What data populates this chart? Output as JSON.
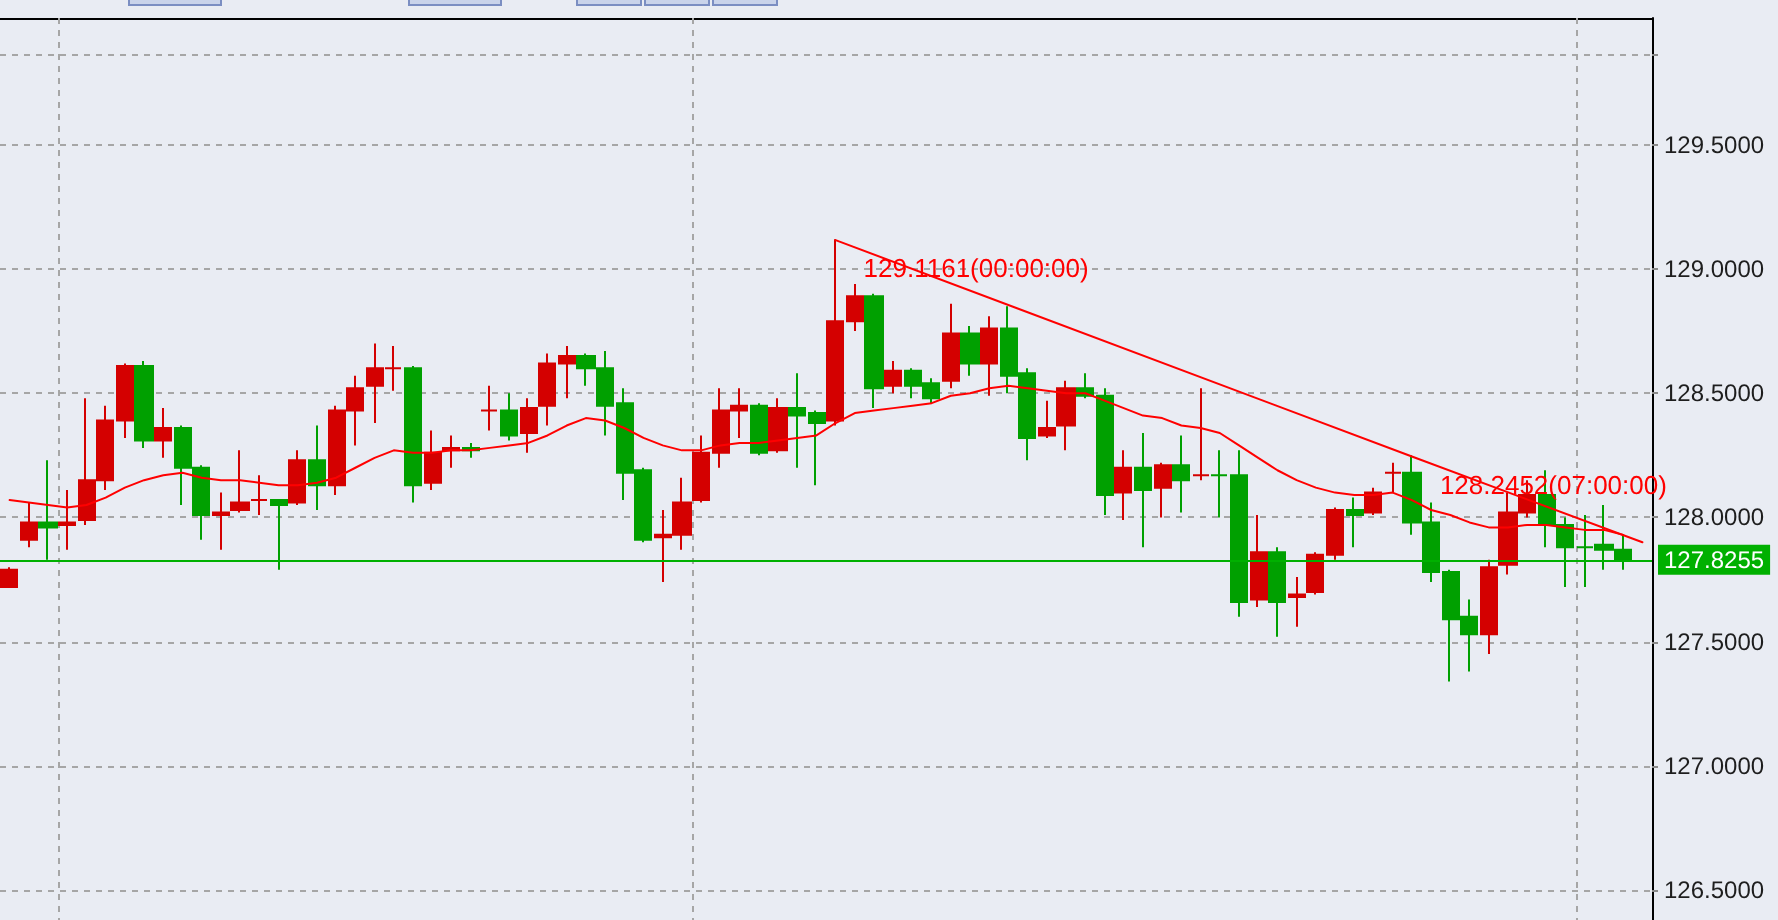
{
  "chart_data": {
    "type": "candlestick",
    "categories": [
      null,
      null,
      null,
      null,
      null,
      null,
      null,
      null,
      null,
      null,
      null,
      null,
      null,
      null,
      null,
      null,
      null,
      null,
      null,
      null,
      null,
      null,
      null,
      null,
      null,
      null,
      null,
      null,
      null,
      null,
      null,
      null,
      null,
      null,
      null,
      null,
      null,
      null,
      null,
      null,
      null,
      null,
      null,
      null,
      null,
      null,
      null,
      null,
      null,
      null,
      null,
      null,
      null,
      null,
      null,
      null,
      null,
      null,
      null,
      null,
      null,
      null,
      null,
      null,
      null,
      null,
      null,
      null,
      null,
      null,
      null,
      null,
      null,
      null,
      null,
      null,
      null,
      null,
      null,
      null,
      null,
      null,
      null,
      null,
      null,
      null
    ],
    "ohlc": [
      [
        127.72,
        127.8,
        127.72,
        127.79
      ],
      [
        127.91,
        128.06,
        127.88,
        127.98
      ],
      [
        127.98,
        128.23,
        127.83,
        127.96
      ],
      [
        127.97,
        128.11,
        127.87,
        127.98
      ],
      [
        127.99,
        128.48,
        127.97,
        128.15
      ],
      [
        128.15,
        128.45,
        128.11,
        128.39
      ],
      [
        128.39,
        128.62,
        128.32,
        128.61
      ],
      [
        128.61,
        128.63,
        128.28,
        128.31
      ],
      [
        128.31,
        128.44,
        128.24,
        128.36
      ],
      [
        128.36,
        128.37,
        128.05,
        128.2
      ],
      [
        128.2,
        128.21,
        127.91,
        128.01
      ],
      [
        128.01,
        128.1,
        127.87,
        128.02
      ],
      [
        128.03,
        128.27,
        128.02,
        128.06
      ],
      [
        128.07,
        128.17,
        128.01,
        128.07
      ],
      [
        128.07,
        128.07,
        127.79,
        128.05
      ],
      [
        128.06,
        128.27,
        128.05,
        128.23
      ],
      [
        128.23,
        128.37,
        128.03,
        128.13
      ],
      [
        128.13,
        128.45,
        128.09,
        128.43
      ],
      [
        128.43,
        128.57,
        128.29,
        128.52
      ],
      [
        128.53,
        128.7,
        128.38,
        128.6
      ],
      [
        128.6,
        128.69,
        128.51,
        128.6
      ],
      [
        128.6,
        128.61,
        128.06,
        128.13
      ],
      [
        128.14,
        128.35,
        128.11,
        128.26
      ],
      [
        128.27,
        128.33,
        128.2,
        128.28
      ],
      [
        128.28,
        128.3,
        128.24,
        128.27
      ],
      [
        128.43,
        128.53,
        128.35,
        128.43
      ],
      [
        128.43,
        128.5,
        128.31,
        128.33
      ],
      [
        128.34,
        128.48,
        128.26,
        128.44
      ],
      [
        128.45,
        128.66,
        128.37,
        128.62
      ],
      [
        128.62,
        128.69,
        128.48,
        128.65
      ],
      [
        128.65,
        128.66,
        128.53,
        128.6
      ],
      [
        128.6,
        128.67,
        128.33,
        128.45
      ],
      [
        128.46,
        128.52,
        128.07,
        128.18
      ],
      [
        128.19,
        128.2,
        127.9,
        127.91
      ],
      [
        127.92,
        128.03,
        127.74,
        127.93
      ],
      [
        127.93,
        128.16,
        127.87,
        128.06
      ],
      [
        128.07,
        128.33,
        128.06,
        128.26
      ],
      [
        128.26,
        128.52,
        128.2,
        128.43
      ],
      [
        128.43,
        128.52,
        128.32,
        128.45
      ],
      [
        128.45,
        128.46,
        128.25,
        128.26
      ],
      [
        128.27,
        128.48,
        128.26,
        128.44
      ],
      [
        128.44,
        128.58,
        128.2,
        128.41
      ],
      [
        128.42,
        128.43,
        128.13,
        128.38
      ],
      [
        128.39,
        129.12,
        128.37,
        128.79
      ],
      [
        128.79,
        128.94,
        128.75,
        128.89
      ],
      [
        128.89,
        128.9,
        128.44,
        128.52
      ],
      [
        128.53,
        128.63,
        128.5,
        128.59
      ],
      [
        128.59,
        128.6,
        128.48,
        128.53
      ],
      [
        128.54,
        128.56,
        128.46,
        128.48
      ],
      [
        128.55,
        128.86,
        128.52,
        128.74
      ],
      [
        128.74,
        128.77,
        128.57,
        128.62
      ],
      [
        128.62,
        128.81,
        128.49,
        128.76
      ],
      [
        128.76,
        128.85,
        128.5,
        128.57
      ],
      [
        128.58,
        128.6,
        128.23,
        128.32
      ],
      [
        128.33,
        128.47,
        128.32,
        128.36
      ],
      [
        128.37,
        128.55,
        128.27,
        128.52
      ],
      [
        128.52,
        128.58,
        128.48,
        128.49
      ],
      [
        128.49,
        128.52,
        128.01,
        128.09
      ],
      [
        128.1,
        128.27,
        127.99,
        128.2
      ],
      [
        128.2,
        128.34,
        127.88,
        128.11
      ],
      [
        128.12,
        128.22,
        128.0,
        128.21
      ],
      [
        128.21,
        128.33,
        128.02,
        128.15
      ],
      [
        128.17,
        128.52,
        128.15,
        128.17
      ],
      [
        128.17,
        128.27,
        128.0,
        128.17
      ],
      [
        128.17,
        128.27,
        127.6,
        127.66
      ],
      [
        127.67,
        128.01,
        127.64,
        127.86
      ],
      [
        127.86,
        127.88,
        127.52,
        127.66
      ],
      [
        127.68,
        127.76,
        127.56,
        127.69
      ],
      [
        127.7,
        127.86,
        127.69,
        127.85
      ],
      [
        127.85,
        128.04,
        127.83,
        128.03
      ],
      [
        128.03,
        128.08,
        127.88,
        128.01
      ],
      [
        128.02,
        128.12,
        128.01,
        128.1
      ],
      [
        128.18,
        128.22,
        128.1,
        128.18
      ],
      [
        128.18,
        128.25,
        127.93,
        127.98
      ],
      [
        127.98,
        128.06,
        127.74,
        127.78
      ],
      [
        127.78,
        127.79,
        127.34,
        127.59
      ],
      [
        127.6,
        127.67,
        127.38,
        127.53
      ],
      [
        127.53,
        127.83,
        127.45,
        127.8
      ],
      [
        127.81,
        128.1,
        127.77,
        128.02
      ],
      [
        128.02,
        128.15,
        128.0,
        128.09
      ],
      [
        128.09,
        128.19,
        127.88,
        127.97
      ],
      [
        127.97,
        128.0,
        127.72,
        127.88
      ],
      [
        127.88,
        128.01,
        127.72,
        127.88
      ],
      [
        127.89,
        128.05,
        127.79,
        127.87
      ],
      [
        127.87,
        127.93,
        127.79,
        127.83
      ],
      null
    ],
    "colors": [
      "#d40000",
      "#d40000",
      "#00a000",
      "#d40000",
      "#d40000",
      "#d40000",
      "#d40000",
      "#00a000",
      "#d40000",
      "#00a000",
      "#00a000",
      "#d40000",
      "#d40000",
      "#d40000",
      "#00a000",
      "#d40000",
      "#00a000",
      "#d40000",
      "#d40000",
      "#d40000",
      "#d40000",
      "#00a000",
      "#d40000",
      "#d40000",
      "#00a000",
      "#d40000",
      "#00a000",
      "#d40000",
      "#d40000",
      "#d40000",
      "#00a000",
      "#00a000",
      "#00a000",
      "#00a000",
      "#d40000",
      "#d40000",
      "#d40000",
      "#d40000",
      "#d40000",
      "#00a000",
      "#d40000",
      "#00a000",
      "#00a000",
      "#d40000",
      "#d40000",
      "#00a000",
      "#d40000",
      "#00a000",
      "#00a000",
      "#d40000",
      "#00a000",
      "#d40000",
      "#00a000",
      "#00a000",
      "#d40000",
      "#d40000",
      "#00a000",
      "#00a000",
      "#d40000",
      "#00a000",
      "#d40000",
      "#00a000",
      "#d40000",
      "#00a000",
      "#00a000",
      "#d40000",
      "#00a000",
      "#d40000",
      "#d40000",
      "#d40000",
      "#00a000",
      "#d40000",
      "#d40000",
      "#00a000",
      "#00a000",
      "#00a000",
      "#00a000",
      "#d40000",
      "#d40000",
      "#d40000",
      "#00a000",
      "#00a000",
      "#00a000",
      "#00a000",
      "#00a000",
      null
    ],
    "series": [
      {
        "type": "line",
        "color": "#ff0000",
        "values": [
          128.07,
          128.06,
          128.05,
          128.04,
          128.05,
          128.08,
          128.12,
          128.15,
          128.17,
          128.18,
          128.16,
          128.15,
          128.15,
          128.14,
          128.13,
          128.13,
          128.14,
          128.16,
          128.2,
          128.24,
          128.27,
          128.26,
          128.26,
          128.27,
          128.27,
          128.28,
          128.29,
          128.3,
          128.33,
          128.37,
          128.4,
          128.39,
          128.36,
          128.32,
          128.29,
          128.27,
          128.27,
          128.29,
          128.3,
          128.3,
          128.31,
          128.32,
          128.33,
          128.38,
          128.42,
          128.43,
          128.44,
          128.45,
          128.46,
          128.49,
          128.5,
          128.52,
          128.53,
          128.52,
          128.51,
          128.5,
          128.5,
          128.47,
          128.44,
          128.41,
          128.4,
          128.37,
          128.36,
          128.34,
          128.29,
          128.24,
          128.19,
          128.15,
          128.12,
          128.1,
          128.09,
          128.09,
          128.1,
          128.07,
          128.03,
          128.01,
          127.98,
          127.96,
          127.96,
          127.97,
          127.97,
          127.96,
          127.95,
          127.95,
          127.93,
          null
        ]
      },
      {
        "type": "line",
        "color": "#ff0000",
        "values": [
          null,
          null,
          null,
          null,
          null,
          null,
          null,
          null,
          null,
          null,
          null,
          null,
          null,
          null,
          null,
          null,
          null,
          null,
          null,
          null,
          null,
          null,
          null,
          null,
          null,
          null,
          null,
          null,
          null,
          null,
          null,
          null,
          null,
          null,
          null,
          null,
          null,
          null,
          null,
          null,
          null,
          null,
          null,
          129.1161,
          null,
          null,
          null,
          null,
          null,
          null,
          null,
          null,
          null,
          null,
          null,
          null,
          null,
          null,
          null,
          null,
          null,
          null,
          null,
          null,
          null,
          null,
          null,
          null,
          null,
          null,
          null,
          null,
          null,
          128.2452,
          null,
          null,
          null,
          null,
          null,
          null,
          null,
          null,
          null,
          null,
          null,
          127.9
        ]
      }
    ],
    "ylim": [
      126.38,
      130.01
    ],
    "yticks": [
      {
        "value": 126.5,
        "label": "126.5000"
      },
      {
        "value": 127,
        "label": "127.0000"
      },
      {
        "value": 127.5,
        "label": "127.5000"
      },
      {
        "value": 128,
        "label": "128.0000"
      },
      {
        "value": 128.5,
        "label": "128.5000"
      },
      {
        "value": 129,
        "label": "129.0000"
      },
      {
        "value": 129.5,
        "label": "129.5000"
      },
      {
        "value": 129.86,
        "label": null
      }
    ],
    "grid": "y",
    "tick_labels": "y",
    "marker": "none",
    "line_style": "solid",
    "ref_lines": [
      {
        "axis": "y",
        "value": 127.8255,
        "label": "127.8255",
        "color": "#00b000"
      }
    ],
    "annotations": [
      "129.1161(00:00:00)",
      "128.2452(07:00:00)"
    ]
  }
}
